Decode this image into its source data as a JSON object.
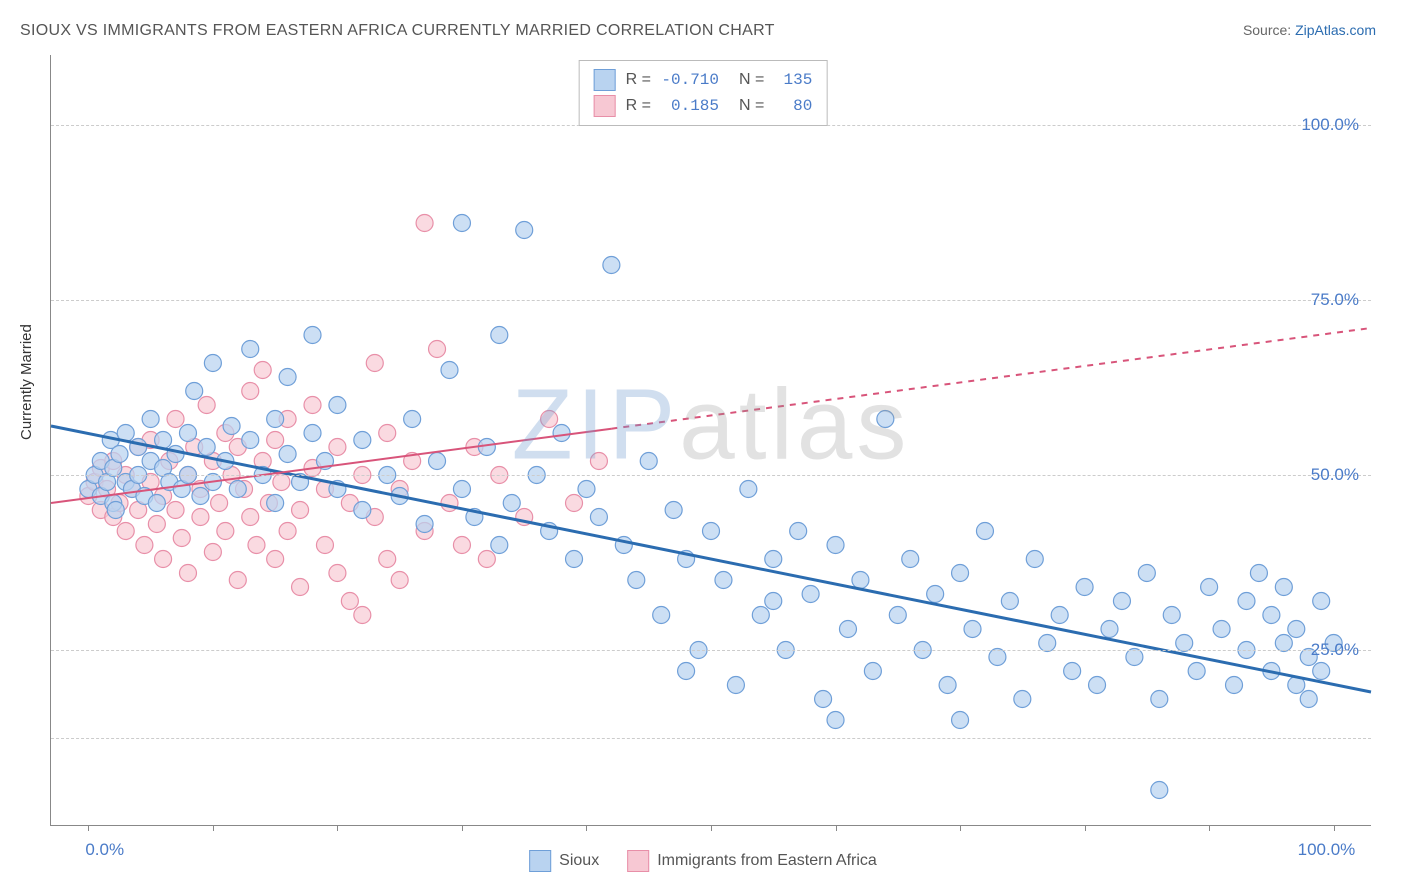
{
  "title": "SIOUX VS IMMIGRANTS FROM EASTERN AFRICA CURRENTLY MARRIED CORRELATION CHART",
  "source_prefix": "Source: ",
  "source_name": "ZipAtlas.com",
  "y_axis_label": "Currently Married",
  "watermark_a": "ZIP",
  "watermark_b": "atlas",
  "chart": {
    "type": "scatter",
    "xlim": [
      -3,
      103
    ],
    "ylim": [
      0,
      110
    ],
    "x_ticks": [
      0,
      10,
      20,
      30,
      40,
      50,
      60,
      70,
      80,
      90,
      100
    ],
    "x_tick_labels": {
      "0": "0.0%",
      "100": "100.0%"
    },
    "y_gridlines": [
      12.5,
      25,
      50,
      75,
      100
    ],
    "y_tick_labels": {
      "25": "25.0%",
      "50": "50.0%",
      "75": "75.0%",
      "100": "100.0%"
    },
    "background_color": "#ffffff",
    "grid_color": "#cccccc",
    "axis_color": "#888888",
    "marker_radius": 8.5,
    "marker_stroke_width": 1.2,
    "series": [
      {
        "name": "Sioux",
        "fill": "#b9d3f0",
        "stroke": "#6f9fd8",
        "fill_opacity": 0.72,
        "line_color": "#2b6cb0",
        "line_width": 3,
        "trend": {
          "x1": -3,
          "y1": 57,
          "x2": 103,
          "y2": 19,
          "dash_from_x": null
        },
        "R": "-0.710",
        "N": "135",
        "points": [
          [
            0,
            48
          ],
          [
            0.5,
            50
          ],
          [
            1,
            47
          ],
          [
            1,
            52
          ],
          [
            1.5,
            49
          ],
          [
            1.8,
            55
          ],
          [
            2,
            46
          ],
          [
            2,
            51
          ],
          [
            2.2,
            45
          ],
          [
            2.5,
            53
          ],
          [
            3,
            49
          ],
          [
            3,
            56
          ],
          [
            3.5,
            48
          ],
          [
            4,
            54
          ],
          [
            4,
            50
          ],
          [
            4.5,
            47
          ],
          [
            5,
            52
          ],
          [
            5,
            58
          ],
          [
            5.5,
            46
          ],
          [
            6,
            51
          ],
          [
            6,
            55
          ],
          [
            6.5,
            49
          ],
          [
            7,
            53
          ],
          [
            7.5,
            48
          ],
          [
            8,
            56
          ],
          [
            8,
            50
          ],
          [
            8.5,
            62
          ],
          [
            9,
            47
          ],
          [
            9.5,
            54
          ],
          [
            10,
            49
          ],
          [
            10,
            66
          ],
          [
            11,
            52
          ],
          [
            11.5,
            57
          ],
          [
            12,
            48
          ],
          [
            13,
            55
          ],
          [
            13,
            68
          ],
          [
            14,
            50
          ],
          [
            15,
            58
          ],
          [
            15,
            46
          ],
          [
            16,
            53
          ],
          [
            16,
            64
          ],
          [
            17,
            49
          ],
          [
            18,
            56
          ],
          [
            18,
            70
          ],
          [
            19,
            52
          ],
          [
            20,
            48
          ],
          [
            20,
            60
          ],
          [
            22,
            45
          ],
          [
            22,
            55
          ],
          [
            24,
            50
          ],
          [
            25,
            47
          ],
          [
            26,
            58
          ],
          [
            27,
            43
          ],
          [
            28,
            52
          ],
          [
            29,
            65
          ],
          [
            30,
            48
          ],
          [
            30,
            86
          ],
          [
            31,
            44
          ],
          [
            32,
            54
          ],
          [
            33,
            70
          ],
          [
            33,
            40
          ],
          [
            34,
            46
          ],
          [
            35,
            85
          ],
          [
            36,
            50
          ],
          [
            37,
            42
          ],
          [
            38,
            56
          ],
          [
            39,
            38
          ],
          [
            40,
            48
          ],
          [
            41,
            44
          ],
          [
            42,
            80
          ],
          [
            43,
            40
          ],
          [
            44,
            35
          ],
          [
            45,
            52
          ],
          [
            46,
            30
          ],
          [
            47,
            45
          ],
          [
            48,
            38
          ],
          [
            49,
            25
          ],
          [
            50,
            42
          ],
          [
            51,
            35
          ],
          [
            52,
            20
          ],
          [
            53,
            48
          ],
          [
            54,
            30
          ],
          [
            55,
            38
          ],
          [
            56,
            25
          ],
          [
            57,
            42
          ],
          [
            58,
            33
          ],
          [
            59,
            18
          ],
          [
            60,
            40
          ],
          [
            61,
            28
          ],
          [
            62,
            35
          ],
          [
            63,
            22
          ],
          [
            64,
            58
          ],
          [
            65,
            30
          ],
          [
            66,
            38
          ],
          [
            67,
            25
          ],
          [
            68,
            33
          ],
          [
            69,
            20
          ],
          [
            70,
            36
          ],
          [
            71,
            28
          ],
          [
            72,
            42
          ],
          [
            73,
            24
          ],
          [
            74,
            32
          ],
          [
            75,
            18
          ],
          [
            76,
            38
          ],
          [
            77,
            26
          ],
          [
            78,
            30
          ],
          [
            79,
            22
          ],
          [
            80,
            34
          ],
          [
            81,
            20
          ],
          [
            82,
            28
          ],
          [
            83,
            32
          ],
          [
            84,
            24
          ],
          [
            85,
            36
          ],
          [
            86,
            18
          ],
          [
            87,
            30
          ],
          [
            88,
            26
          ],
          [
            89,
            22
          ],
          [
            90,
            34
          ],
          [
            91,
            28
          ],
          [
            92,
            20
          ],
          [
            93,
            32
          ],
          [
            93,
            25
          ],
          [
            94,
            36
          ],
          [
            95,
            22
          ],
          [
            95,
            30
          ],
          [
            96,
            26
          ],
          [
            96,
            34
          ],
          [
            97,
            20
          ],
          [
            97,
            28
          ],
          [
            98,
            24
          ],
          [
            98,
            18
          ],
          [
            99,
            32
          ],
          [
            99,
            22
          ],
          [
            100,
            26
          ],
          [
            86,
            5
          ],
          [
            70,
            15
          ],
          [
            60,
            15
          ],
          [
            55,
            32
          ],
          [
            48,
            22
          ]
        ]
      },
      {
        "name": "Immigrants from Eastern Africa",
        "fill": "#f7c8d3",
        "stroke": "#e88fa8",
        "fill_opacity": 0.68,
        "line_color": "#d8547a",
        "line_width": 2,
        "trend": {
          "x1": -3,
          "y1": 46,
          "x2": 103,
          "y2": 71,
          "dash_from_x": 42
        },
        "R": "0.185",
        "N": "80",
        "points": [
          [
            0,
            47
          ],
          [
            0.5,
            49
          ],
          [
            1,
            45
          ],
          [
            1,
            51
          ],
          [
            1.5,
            48
          ],
          [
            2,
            44
          ],
          [
            2,
            52
          ],
          [
            2.5,
            46
          ],
          [
            3,
            50
          ],
          [
            3,
            42
          ],
          [
            3.5,
            48
          ],
          [
            4,
            54
          ],
          [
            4,
            45
          ],
          [
            4.5,
            40
          ],
          [
            5,
            49
          ],
          [
            5,
            55
          ],
          [
            5.5,
            43
          ],
          [
            6,
            47
          ],
          [
            6,
            38
          ],
          [
            6.5,
            52
          ],
          [
            7,
            45
          ],
          [
            7,
            58
          ],
          [
            7.5,
            41
          ],
          [
            8,
            50
          ],
          [
            8,
            36
          ],
          [
            8.5,
            54
          ],
          [
            9,
            44
          ],
          [
            9,
            48
          ],
          [
            9.5,
            60
          ],
          [
            10,
            39
          ],
          [
            10,
            52
          ],
          [
            10.5,
            46
          ],
          [
            11,
            56
          ],
          [
            11,
            42
          ],
          [
            11.5,
            50
          ],
          [
            12,
            35
          ],
          [
            12,
            54
          ],
          [
            12.5,
            48
          ],
          [
            13,
            62
          ],
          [
            13,
            44
          ],
          [
            13.5,
            40
          ],
          [
            14,
            52
          ],
          [
            14,
            65
          ],
          [
            14.5,
            46
          ],
          [
            15,
            38
          ],
          [
            15,
            55
          ],
          [
            15.5,
            49
          ],
          [
            16,
            42
          ],
          [
            16,
            58
          ],
          [
            17,
            45
          ],
          [
            17,
            34
          ],
          [
            18,
            51
          ],
          [
            18,
            60
          ],
          [
            19,
            40
          ],
          [
            19,
            48
          ],
          [
            20,
            54
          ],
          [
            20,
            36
          ],
          [
            21,
            46
          ],
          [
            21,
            32
          ],
          [
            22,
            50
          ],
          [
            22,
            30
          ],
          [
            23,
            66
          ],
          [
            23,
            44
          ],
          [
            24,
            38
          ],
          [
            24,
            56
          ],
          [
            25,
            48
          ],
          [
            25,
            35
          ],
          [
            26,
            52
          ],
          [
            27,
            42
          ],
          [
            27,
            86
          ],
          [
            28,
            68
          ],
          [
            29,
            46
          ],
          [
            30,
            40
          ],
          [
            31,
            54
          ],
          [
            32,
            38
          ],
          [
            33,
            50
          ],
          [
            35,
            44
          ],
          [
            37,
            58
          ],
          [
            39,
            46
          ],
          [
            41,
            52
          ]
        ]
      }
    ]
  },
  "legend_bottom": [
    {
      "label": "Sioux",
      "fill": "#b9d3f0",
      "stroke": "#6f9fd8"
    },
    {
      "label": "Immigrants from Eastern Africa",
      "fill": "#f7c8d3",
      "stroke": "#e88fa8"
    }
  ]
}
